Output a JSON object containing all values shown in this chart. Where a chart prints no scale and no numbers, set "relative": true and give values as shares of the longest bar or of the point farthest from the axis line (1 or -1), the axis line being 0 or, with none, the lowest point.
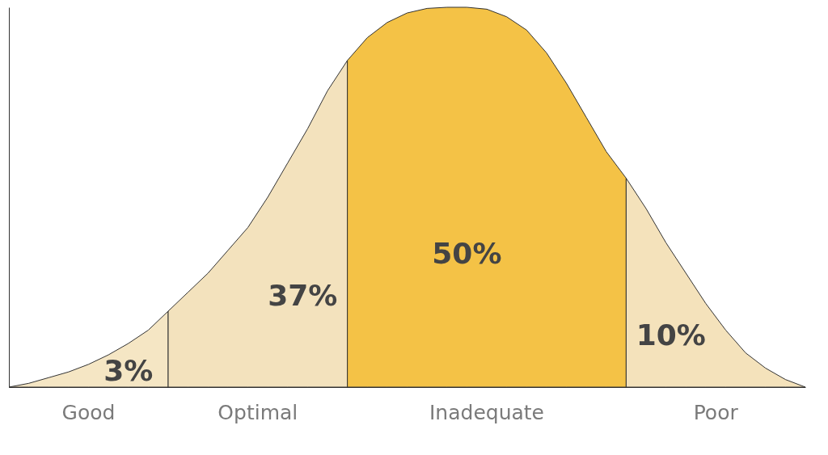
{
  "chart_data": {
    "type": "area",
    "relative": true,
    "categories": [
      null,
      null,
      null,
      null,
      null,
      null,
      null,
      null,
      null,
      null,
      null,
      null,
      null,
      null,
      null,
      null,
      null,
      null,
      null,
      null,
      null,
      null,
      null,
      null,
      null,
      null,
      null,
      null,
      null,
      null,
      null,
      null,
      null,
      null,
      null,
      null,
      null,
      null,
      null,
      null,
      null
    ],
    "series": [
      {
        "name": "Good",
        "color": "#f5e6c4",
        "values": [
          0,
          0.01,
          0.025,
          0.04,
          0.06,
          0.085,
          0.115,
          0.15,
          0.2,
          null,
          null,
          null,
          null,
          null,
          null,
          null,
          null,
          null,
          null,
          null,
          null,
          null,
          null,
          null,
          null,
          null,
          null,
          null,
          null,
          null,
          null,
          null,
          null,
          null,
          null,
          null,
          null,
          null,
          null,
          null,
          null
        ]
      },
      {
        "name": "Optimal",
        "color": "#f3e2bd",
        "values": [
          null,
          null,
          null,
          null,
          null,
          null,
          null,
          null,
          0.2,
          0.25,
          0.3,
          0.36,
          0.42,
          0.5,
          0.59,
          0.68,
          0.78,
          0.86,
          null,
          null,
          null,
          null,
          null,
          null,
          null,
          null,
          null,
          null,
          null,
          null,
          null,
          null,
          null,
          null,
          null,
          null,
          null,
          null,
          null,
          null,
          null
        ]
      },
      {
        "name": "Inadequate",
        "color": "#f4c246",
        "values": [
          null,
          null,
          null,
          null,
          null,
          null,
          null,
          null,
          null,
          null,
          null,
          null,
          null,
          null,
          null,
          null,
          null,
          0.86,
          0.92,
          0.96,
          0.985,
          0.997,
          1,
          1,
          0.995,
          0.975,
          0.94,
          0.88,
          0.8,
          0.71,
          0.62,
          0.55,
          null,
          null,
          null,
          null,
          null,
          null,
          null,
          null,
          null
        ]
      },
      {
        "name": "Poor",
        "color": "#f4e2bb",
        "values": [
          null,
          null,
          null,
          null,
          null,
          null,
          null,
          null,
          null,
          null,
          null,
          null,
          null,
          null,
          null,
          null,
          null,
          null,
          null,
          null,
          null,
          null,
          null,
          null,
          null,
          null,
          null,
          null,
          null,
          null,
          null,
          0.55,
          0.47,
          0.38,
          0.3,
          0.22,
          0.15,
          0.09,
          0.05,
          0.02,
          0
        ]
      }
    ],
    "annotations": [
      "3%",
      "37%",
      "50%",
      "10%"
    ]
  }
}
